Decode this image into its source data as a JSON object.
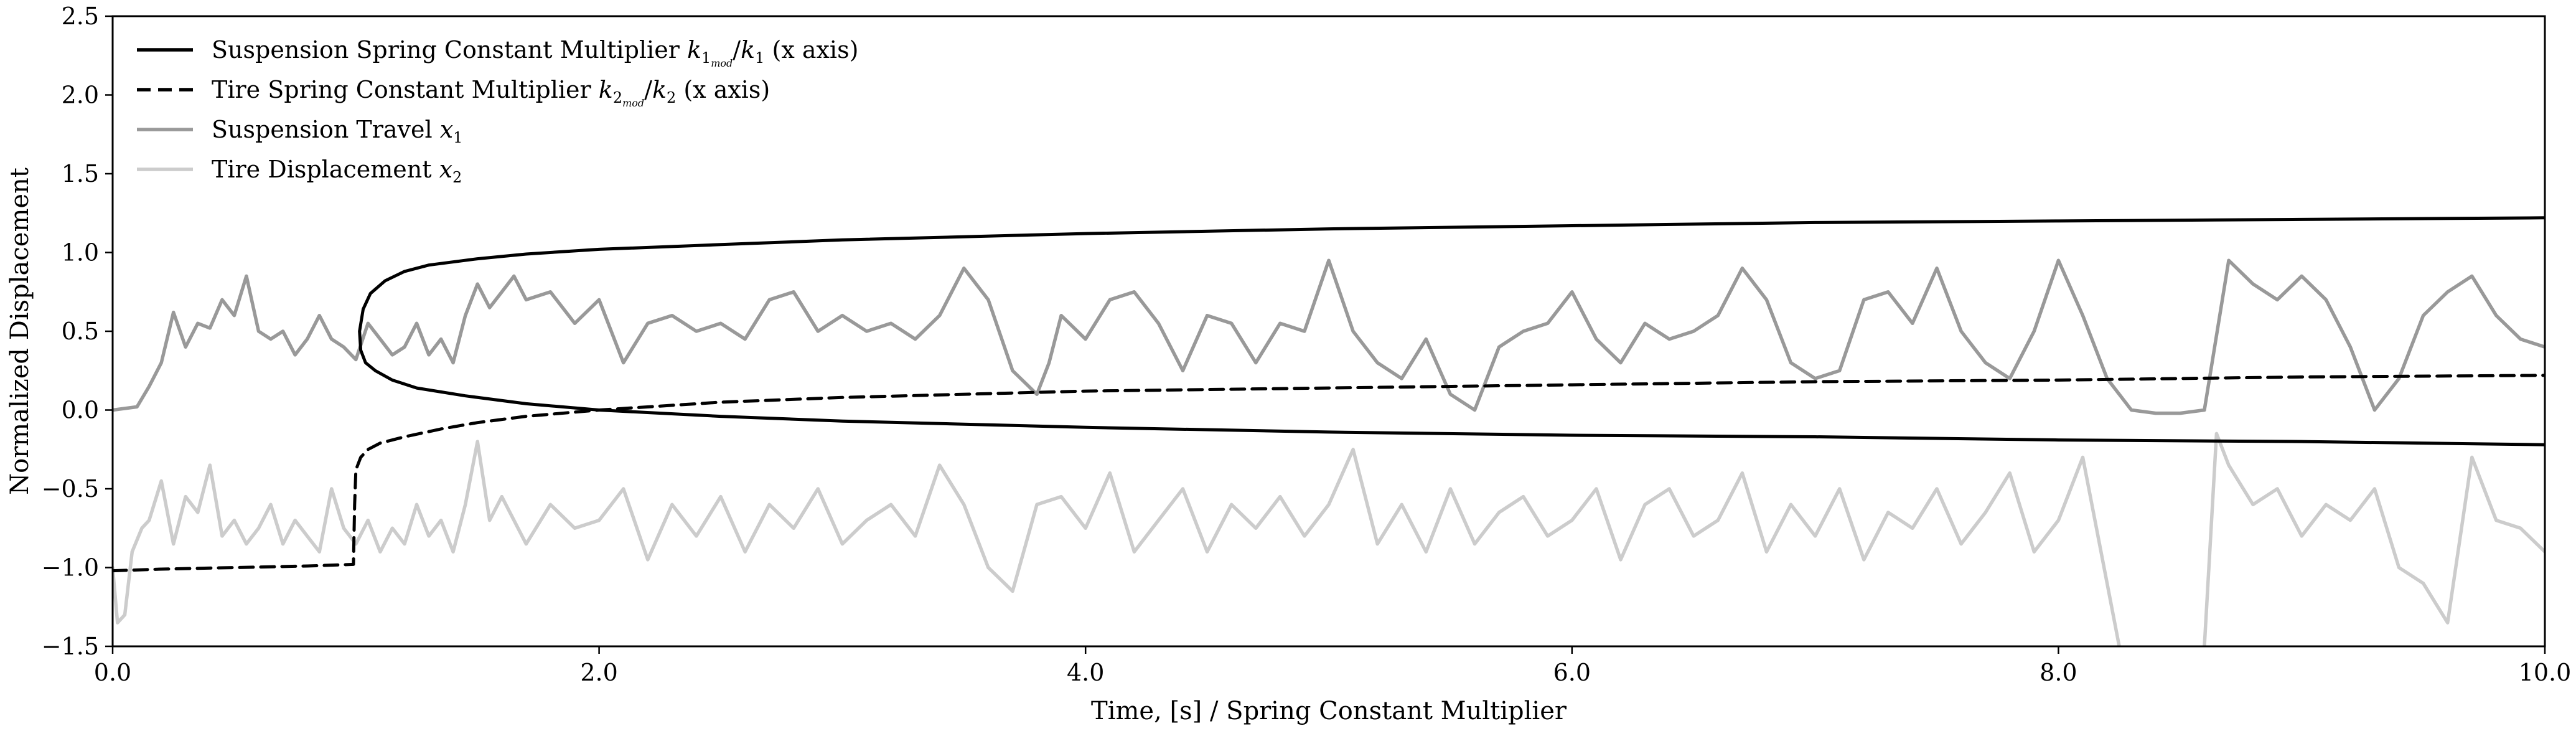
{
  "chart_data": {
    "type": "line",
    "title": "",
    "xlabel": "Time, [s] / Spring Constant Multiplier",
    "ylabel": "Normalized Displacement",
    "xlim": [
      0.0,
      10.0
    ],
    "ylim": [
      -1.5,
      2.5
    ],
    "grid": false,
    "legend_position": "top-left",
    "xticks": [
      0.0,
      2.0,
      4.0,
      6.0,
      8.0,
      10.0
    ],
    "xtick_labels": [
      "0.0",
      "2.0",
      "4.0",
      "6.0",
      "8.0",
      "10.0"
    ],
    "yticks": [
      2.5,
      2.0,
      1.5,
      1.0,
      0.5,
      0.0,
      -0.5,
      -1.0,
      -1.5
    ],
    "ytick_labels": [
      "2.5",
      "2.0",
      "1.5",
      "1.0",
      "0.5",
      "0.0",
      "−0.5",
      "−1.0",
      "−1.5"
    ],
    "legend": [
      {
        "pre": "Suspension Spring Constant Multiplier ",
        "sym": "k",
        "sub": "1",
        "subsub": "mod",
        "mid": "/",
        "sym2": "k",
        "sub2": "1",
        "post": " (x axis)"
      },
      {
        "pre": "Tire Spring Constant Multiplier ",
        "sym": "k",
        "sub": "2",
        "subsub": "mod",
        "mid": "/",
        "sym2": "k",
        "sub2": "2",
        "post": " (x axis)"
      },
      {
        "pre": "Suspension Travel ",
        "sym": "x",
        "sub": "1"
      },
      {
        "pre": "Tire Displacement ",
        "sym": "x",
        "sub": "2"
      }
    ],
    "series": [
      {
        "color": "#000000",
        "dash": "solid",
        "comment_points": "suspension multiplier curve (two branches, x-y pairs)",
        "x": [
          10.0,
          9.0,
          8.0,
          7.0,
          6.0,
          5.0,
          4.0,
          3.0,
          2.5,
          2.0,
          1.7,
          1.5,
          1.3,
          1.2,
          1.12,
          1.06,
          1.03,
          1.015,
          1.02,
          1.04,
          1.08,
          1.15,
          1.25,
          1.45,
          1.7,
          2.0,
          2.5,
          3.0,
          4.0,
          5.0,
          6.0,
          7.0,
          8.0,
          9.0,
          10.0
        ],
        "y": [
          1.22,
          1.21,
          1.2,
          1.19,
          1.17,
          1.15,
          1.12,
          1.08,
          1.05,
          1.02,
          0.99,
          0.96,
          0.92,
          0.88,
          0.82,
          0.74,
          0.64,
          0.5,
          0.38,
          0.3,
          0.25,
          0.19,
          0.14,
          0.09,
          0.04,
          0.0,
          -0.04,
          -0.07,
          -0.11,
          -0.14,
          -0.16,
          -0.17,
          -0.19,
          -0.2,
          -0.22
        ]
      },
      {
        "color": "#000000",
        "dash": "dashed",
        "x": [
          0.0,
          0.2,
          0.5,
          0.8,
          0.99,
          0.995,
          1.0,
          1.02,
          1.05,
          1.1,
          1.2,
          1.35,
          1.5,
          1.7,
          2.0,
          2.5,
          3.0,
          4.0,
          5.0,
          6.0,
          7.0,
          8.0,
          9.0,
          10.0
        ],
        "y": [
          -1.02,
          -1.01,
          -1.0,
          -0.99,
          -0.98,
          -0.6,
          -0.38,
          -0.3,
          -0.25,
          -0.21,
          -0.17,
          -0.12,
          -0.08,
          -0.04,
          0.0,
          0.05,
          0.08,
          0.12,
          0.14,
          0.16,
          0.18,
          0.19,
          0.21,
          0.22
        ]
      },
      {
        "color": "#999999",
        "dash": "solid",
        "x": [
          0.0,
          0.1,
          0.15,
          0.2,
          0.25,
          0.3,
          0.35,
          0.4,
          0.45,
          0.5,
          0.55,
          0.6,
          0.65,
          0.7,
          0.75,
          0.8,
          0.85,
          0.9,
          0.95,
          1.0,
          1.05,
          1.1,
          1.15,
          1.2,
          1.25,
          1.3,
          1.35,
          1.4,
          1.45,
          1.5,
          1.55,
          1.6,
          1.65,
          1.7,
          1.8,
          1.9,
          2.0,
          2.1,
          2.2,
          2.3,
          2.4,
          2.5,
          2.6,
          2.7,
          2.8,
          2.9,
          3.0,
          3.1,
          3.2,
          3.3,
          3.4,
          3.5,
          3.6,
          3.7,
          3.8,
          3.85,
          3.9,
          4.0,
          4.1,
          4.2,
          4.3,
          4.4,
          4.5,
          4.6,
          4.7,
          4.8,
          4.9,
          5.0,
          5.1,
          5.2,
          5.3,
          5.4,
          5.5,
          5.6,
          5.7,
          5.8,
          5.9,
          6.0,
          6.1,
          6.2,
          6.3,
          6.4,
          6.5,
          6.6,
          6.7,
          6.8,
          6.9,
          7.0,
          7.1,
          7.2,
          7.3,
          7.4,
          7.5,
          7.6,
          7.7,
          7.8,
          7.9,
          8.0,
          8.1,
          8.2,
          8.3,
          8.4,
          8.5,
          8.6,
          8.7,
          8.8,
          8.9,
          9.0,
          9.1,
          9.2,
          9.3,
          9.4,
          9.5,
          9.6,
          9.7,
          9.8,
          9.9,
          10.0
        ],
        "y": [
          0.0,
          0.02,
          0.15,
          0.3,
          0.62,
          0.4,
          0.55,
          0.52,
          0.7,
          0.6,
          0.85,
          0.5,
          0.45,
          0.5,
          0.35,
          0.45,
          0.6,
          0.45,
          0.4,
          0.32,
          0.55,
          0.45,
          0.35,
          0.4,
          0.55,
          0.35,
          0.45,
          0.3,
          0.6,
          0.8,
          0.65,
          0.75,
          0.85,
          0.7,
          0.75,
          0.55,
          0.7,
          0.3,
          0.55,
          0.6,
          0.5,
          0.55,
          0.45,
          0.7,
          0.75,
          0.5,
          0.6,
          0.5,
          0.55,
          0.45,
          0.6,
          0.9,
          0.7,
          0.25,
          0.1,
          0.3,
          0.6,
          0.45,
          0.7,
          0.75,
          0.55,
          0.25,
          0.6,
          0.55,
          0.3,
          0.55,
          0.5,
          0.95,
          0.5,
          0.3,
          0.2,
          0.45,
          0.1,
          0.0,
          0.4,
          0.5,
          0.55,
          0.75,
          0.45,
          0.3,
          0.55,
          0.45,
          0.5,
          0.6,
          0.9,
          0.7,
          0.3,
          0.2,
          0.25,
          0.7,
          0.75,
          0.55,
          0.9,
          0.5,
          0.3,
          0.2,
          0.5,
          0.95,
          0.6,
          0.2,
          0.0,
          -0.02,
          -0.02,
          0.0,
          0.95,
          0.8,
          0.7,
          0.85,
          0.7,
          0.4,
          0.0,
          0.2,
          0.6,
          0.75,
          0.85,
          0.6,
          0.45,
          0.4
        ]
      },
      {
        "color": "#cccccc",
        "dash": "solid",
        "x": [
          0.0,
          0.02,
          0.05,
          0.08,
          0.12,
          0.15,
          0.2,
          0.25,
          0.3,
          0.35,
          0.4,
          0.45,
          0.5,
          0.55,
          0.6,
          0.65,
          0.7,
          0.75,
          0.8,
          0.85,
          0.9,
          0.95,
          1.0,
          1.05,
          1.1,
          1.15,
          1.2,
          1.25,
          1.3,
          1.35,
          1.4,
          1.45,
          1.5,
          1.55,
          1.6,
          1.7,
          1.8,
          1.9,
          2.0,
          2.1,
          2.2,
          2.3,
          2.4,
          2.5,
          2.6,
          2.7,
          2.8,
          2.9,
          3.0,
          3.1,
          3.2,
          3.3,
          3.4,
          3.5,
          3.6,
          3.7,
          3.8,
          3.9,
          4.0,
          4.1,
          4.2,
          4.3,
          4.4,
          4.5,
          4.6,
          4.7,
          4.8,
          4.9,
          5.0,
          5.1,
          5.2,
          5.3,
          5.4,
          5.5,
          5.6,
          5.7,
          5.8,
          5.9,
          6.0,
          6.1,
          6.2,
          6.3,
          6.4,
          6.5,
          6.6,
          6.7,
          6.8,
          6.9,
          7.0,
          7.1,
          7.2,
          7.3,
          7.4,
          7.5,
          7.6,
          7.7,
          7.8,
          7.9,
          8.0,
          8.1,
          8.2,
          8.25,
          8.3,
          8.5,
          8.6,
          8.65,
          8.7,
          8.8,
          8.9,
          9.0,
          9.1,
          9.2,
          9.3,
          9.4,
          9.5,
          9.6,
          9.7,
          9.8,
          9.9,
          10.0
        ],
        "y": [
          -1.0,
          -1.35,
          -1.3,
          -0.9,
          -0.75,
          -0.7,
          -0.45,
          -0.85,
          -0.55,
          -0.65,
          -0.35,
          -0.8,
          -0.7,
          -0.85,
          -0.75,
          -0.6,
          -0.85,
          -0.7,
          -0.8,
          -0.9,
          -0.5,
          -0.75,
          -0.85,
          -0.7,
          -0.9,
          -0.75,
          -0.85,
          -0.6,
          -0.8,
          -0.7,
          -0.9,
          -0.6,
          -0.2,
          -0.7,
          -0.55,
          -0.85,
          -0.6,
          -0.75,
          -0.7,
          -0.5,
          -0.95,
          -0.6,
          -0.8,
          -0.55,
          -0.9,
          -0.6,
          -0.75,
          -0.5,
          -0.85,
          -0.7,
          -0.6,
          -0.8,
          -0.35,
          -0.6,
          -1.0,
          -1.15,
          -0.6,
          -0.55,
          -0.75,
          -0.4,
          -0.9,
          -0.7,
          -0.5,
          -0.9,
          -0.6,
          -0.75,
          -0.55,
          -0.8,
          -0.6,
          -0.25,
          -0.85,
          -0.6,
          -0.9,
          -0.5,
          -0.85,
          -0.65,
          -0.55,
          -0.8,
          -0.7,
          -0.5,
          -0.95,
          -0.6,
          -0.5,
          -0.8,
          -0.7,
          -0.4,
          -0.9,
          -0.6,
          -0.8,
          -0.5,
          -0.95,
          -0.65,
          -0.75,
          -0.5,
          -0.85,
          -0.65,
          -0.4,
          -0.9,
          -0.7,
          -0.3,
          -1.1,
          -1.5,
          -1.6,
          -1.6,
          -1.5,
          -0.15,
          -0.35,
          -0.6,
          -0.5,
          -0.8,
          -0.6,
          -0.7,
          -0.5,
          -1.0,
          -1.1,
          -1.35,
          -0.3,
          -0.7,
          -0.75,
          -0.9
        ]
      }
    ]
  }
}
